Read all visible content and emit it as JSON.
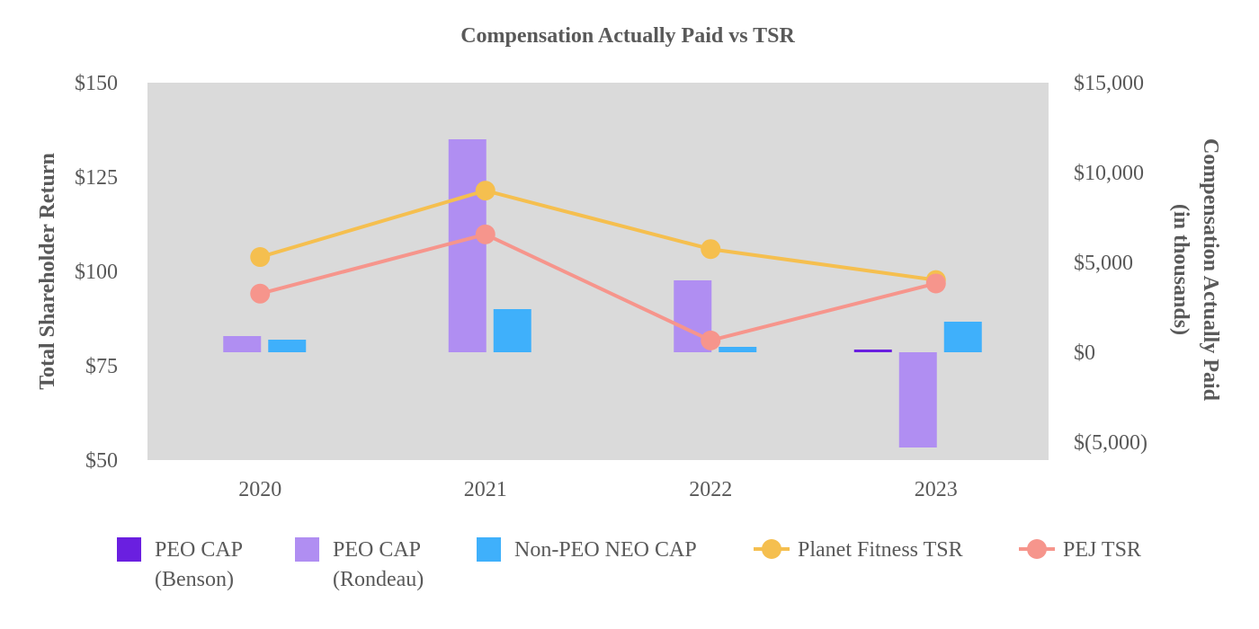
{
  "chart_data": {
    "type": "bar",
    "title": "Compensation Actually Paid vs TSR",
    "categories": [
      "2020",
      "2021",
      "2022",
      "2023"
    ],
    "left_axis": {
      "label": "Total Shareholder Return",
      "range": [
        50,
        150
      ],
      "ticks": [
        50,
        75,
        100,
        125,
        150
      ],
      "tick_labels": [
        "$50",
        "$75",
        "$100",
        "$125",
        "$150"
      ]
    },
    "right_axis": {
      "label_lines": [
        "Compensation Actually Paid",
        "(in thousands)"
      ],
      "range": [
        -6000,
        15000
      ],
      "ticks": [
        -5000,
        0,
        5000,
        10000,
        15000
      ],
      "tick_labels": [
        "$(5,000)",
        "$0",
        "$5,000",
        "$10,000",
        "$15,000"
      ]
    },
    "bar_series": [
      {
        "name_lines": [
          "PEO CAP",
          "(Benson)"
        ],
        "color": "#6a1fe0",
        "values": [
          null,
          null,
          null,
          150
        ]
      },
      {
        "name_lines": [
          "PEO CAP",
          "(Rondeau)"
        ],
        "color": "#b08ef2",
        "values": [
          900,
          11850,
          4000,
          -5300
        ]
      },
      {
        "name_lines": [
          "Non-PEO NEO CAP"
        ],
        "color": "#3fb0fb",
        "values": [
          700,
          2400,
          300,
          1700
        ]
      }
    ],
    "line_series": [
      {
        "name": "Planet Fitness TSR",
        "color": "#f5bf4f",
        "values": [
          103.8,
          121.4,
          105.9,
          97.7
        ]
      },
      {
        "name": "PEJ TSR",
        "color": "#f6958c",
        "values": [
          94.1,
          109.8,
          81.7,
          96.8
        ]
      }
    ],
    "plot_background": "#dadada",
    "grid": false,
    "legend_position": "bottom"
  }
}
